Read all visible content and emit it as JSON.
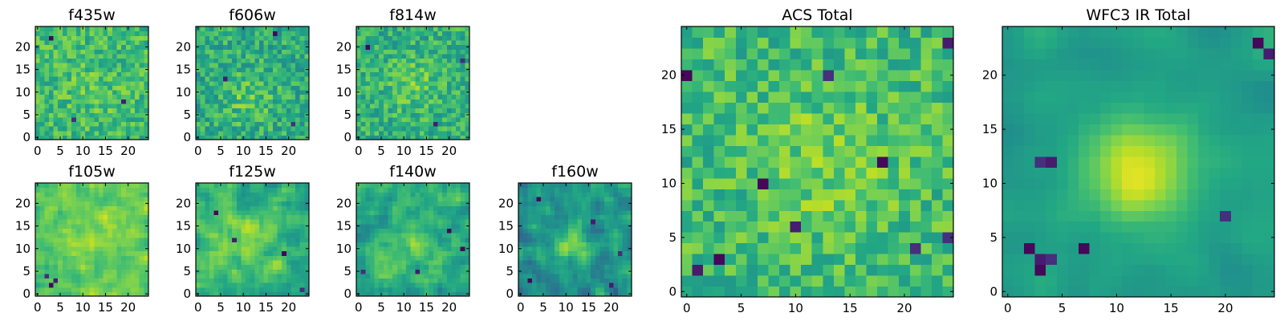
{
  "figure": {
    "background": "#ffffff",
    "colormap": "viridis",
    "grid_size": 25
  },
  "chart_data": [
    {
      "type": "heatmap",
      "title": "f435w",
      "xticks": [
        0,
        5,
        10,
        15,
        20
      ],
      "yticks": [
        0,
        5,
        10,
        15,
        20
      ],
      "xlim": [
        -0.5,
        24.5
      ],
      "ylim": [
        -0.5,
        24.5
      ],
      "pattern": {
        "seed": 11,
        "base": 0.68,
        "noise": 0.3,
        "smooth": 0,
        "peak": 0.05,
        "peak_x": 12,
        "peak_y": 11,
        "peak_sigma": 5,
        "dark_spots": [
          [
            3,
            22
          ],
          [
            19,
            8
          ],
          [
            8,
            4
          ]
        ]
      }
    },
    {
      "type": "heatmap",
      "title": "f606w",
      "xticks": [
        0,
        5,
        10,
        15,
        20
      ],
      "yticks": [
        0,
        5,
        10,
        15,
        20
      ],
      "xlim": [
        -0.5,
        24.5
      ],
      "ylim": [
        -0.5,
        24.5
      ],
      "pattern": {
        "seed": 23,
        "base": 0.62,
        "noise": 0.32,
        "smooth": 0,
        "peak": 0.12,
        "peak_x": 11,
        "peak_y": 9,
        "peak_sigma": 4,
        "dark_spots": [
          [
            17,
            23
          ],
          [
            6,
            13
          ],
          [
            21,
            3
          ]
        ]
      }
    },
    {
      "type": "heatmap",
      "title": "f814w",
      "xticks": [
        0,
        5,
        10,
        15,
        20
      ],
      "yticks": [
        0,
        5,
        10,
        15,
        20
      ],
      "xlim": [
        -0.5,
        24.5
      ],
      "ylim": [
        -0.5,
        24.5
      ],
      "pattern": {
        "seed": 37,
        "base": 0.64,
        "noise": 0.3,
        "smooth": 0,
        "peak": 0.12,
        "peak_x": 12,
        "peak_y": 12,
        "peak_sigma": 4,
        "dark_spots": [
          [
            2,
            20
          ],
          [
            17,
            3
          ],
          [
            23,
            17
          ]
        ]
      }
    },
    {
      "type": "heatmap",
      "title": "f105w",
      "xticks": [
        0,
        5,
        10,
        15,
        20
      ],
      "yticks": [
        0,
        5,
        10,
        15,
        20
      ],
      "xlim": [
        -0.5,
        24.5
      ],
      "ylim": [
        -0.5,
        24.5
      ],
      "pattern": {
        "seed": 41,
        "base": 0.74,
        "noise": 0.22,
        "smooth": 1,
        "peak": 0.1,
        "peak_x": 13,
        "peak_y": 13,
        "peak_sigma": 5,
        "dark_spots": [
          [
            3,
            2
          ],
          [
            4,
            3
          ],
          [
            2,
            4
          ]
        ]
      }
    },
    {
      "type": "heatmap",
      "title": "f125w",
      "xticks": [
        0,
        5,
        10,
        15,
        20
      ],
      "yticks": [
        0,
        5,
        10,
        15,
        20
      ],
      "xlim": [
        -0.5,
        24.5
      ],
      "ylim": [
        -0.5,
        24.5
      ],
      "pattern": {
        "seed": 53,
        "base": 0.66,
        "noise": 0.26,
        "smooth": 1,
        "peak": 0.15,
        "peak_x": 11,
        "peak_y": 12,
        "peak_sigma": 4,
        "dark_spots": [
          [
            19,
            9
          ],
          [
            8,
            12
          ],
          [
            23,
            1
          ],
          [
            4,
            18
          ]
        ]
      }
    },
    {
      "type": "heatmap",
      "title": "f140w",
      "xticks": [
        0,
        5,
        10,
        15,
        20
      ],
      "yticks": [
        0,
        5,
        10,
        15,
        20
      ],
      "xlim": [
        -0.5,
        24.5
      ],
      "ylim": [
        -0.5,
        24.5
      ],
      "pattern": {
        "seed": 67,
        "base": 0.62,
        "noise": 0.28,
        "smooth": 1,
        "peak": 0.12,
        "peak_x": 11,
        "peak_y": 11,
        "peak_sigma": 4,
        "dark_spots": [
          [
            20,
            14
          ],
          [
            13,
            5
          ],
          [
            1,
            5
          ],
          [
            23,
            10
          ]
        ]
      }
    },
    {
      "type": "heatmap",
      "title": "f160w",
      "xticks": [
        0,
        5,
        10,
        15,
        20
      ],
      "yticks": [
        0,
        5,
        10,
        15,
        20
      ],
      "xlim": [
        -0.5,
        24.5
      ],
      "ylim": [
        -0.5,
        24.5
      ],
      "pattern": {
        "seed": 79,
        "base": 0.52,
        "noise": 0.3,
        "smooth": 1,
        "peak": 0.3,
        "peak_x": 11,
        "peak_y": 11,
        "peak_sigma": 3,
        "dark_spots": [
          [
            4,
            21
          ],
          [
            16,
            16
          ],
          [
            22,
            9
          ],
          [
            2,
            3
          ],
          [
            20,
            2
          ]
        ]
      }
    },
    {
      "type": "heatmap",
      "title": "ACS Total",
      "xticks": [
        0,
        5,
        10,
        15,
        20
      ],
      "yticks": [
        0,
        5,
        10,
        15,
        20
      ],
      "xlim": [
        -0.5,
        24.5
      ],
      "ylim": [
        -0.5,
        24.5
      ],
      "pattern": {
        "seed": 97,
        "base": 0.68,
        "noise": 0.3,
        "smooth": 0,
        "peak": 0.1,
        "peak_x": 13,
        "peak_y": 12,
        "peak_sigma": 5,
        "dark_spots": [
          [
            0,
            20
          ],
          [
            24,
            23
          ],
          [
            13,
            20
          ],
          [
            18,
            12
          ],
          [
            10,
            6
          ],
          [
            21,
            4
          ],
          [
            3,
            3
          ],
          [
            1,
            2
          ],
          [
            24,
            5
          ],
          [
            7,
            10
          ]
        ]
      }
    },
    {
      "type": "heatmap",
      "title": "WFC3 IR Total",
      "xticks": [
        0,
        5,
        10,
        15,
        20
      ],
      "yticks": [
        0,
        5,
        10,
        15,
        20
      ],
      "xlim": [
        -0.5,
        24.5
      ],
      "ylim": [
        -0.5,
        24.5
      ],
      "pattern": {
        "seed": 113,
        "base": 0.56,
        "noise": 0.16,
        "smooth": 2,
        "peak": 0.38,
        "peak_x": 12,
        "peak_y": 11,
        "peak_sigma": 3.5,
        "dark_spots": [
          [
            2,
            4
          ],
          [
            3,
            3
          ],
          [
            4,
            3
          ],
          [
            3,
            2
          ],
          [
            4,
            12
          ],
          [
            3,
            12
          ],
          [
            23,
            23
          ],
          [
            24,
            22
          ],
          [
            20,
            7
          ],
          [
            7,
            4
          ]
        ]
      }
    }
  ]
}
